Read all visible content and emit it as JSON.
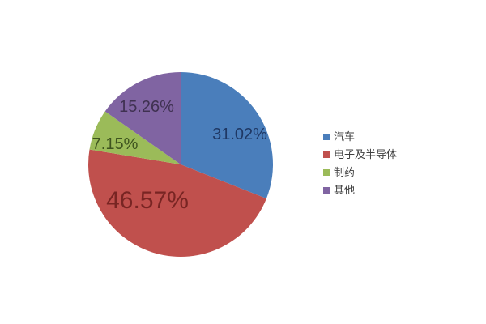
{
  "chart_data": {
    "type": "pie",
    "title": "",
    "legend_position": "right",
    "start_angle_deg": 0,
    "direction": "clockwise",
    "background_color": "#ffffff",
    "legend_text_color": "#404040",
    "categories": [
      "汽车",
      "电子及半导体",
      "制药",
      "其他"
    ],
    "values": [
      31.02,
      46.57,
      7.15,
      15.26
    ],
    "slices": [
      {
        "label": "汽车",
        "value": 31.02,
        "display": "31.02%",
        "color": "#4A7EBB",
        "label_color": "#1F3864"
      },
      {
        "label": "电子及半导体",
        "value": 46.57,
        "display": "46.57%",
        "color": "#C0504D",
        "label_color": "#782523"
      },
      {
        "label": "制药",
        "value": 7.15,
        "display": "7.15%",
        "color": "#9BBB59",
        "label_color": "#3E541F"
      },
      {
        "label": "其他",
        "value": 15.26,
        "display": "15.26%",
        "color": "#8064A2",
        "label_color": "#3F3151"
      }
    ]
  }
}
